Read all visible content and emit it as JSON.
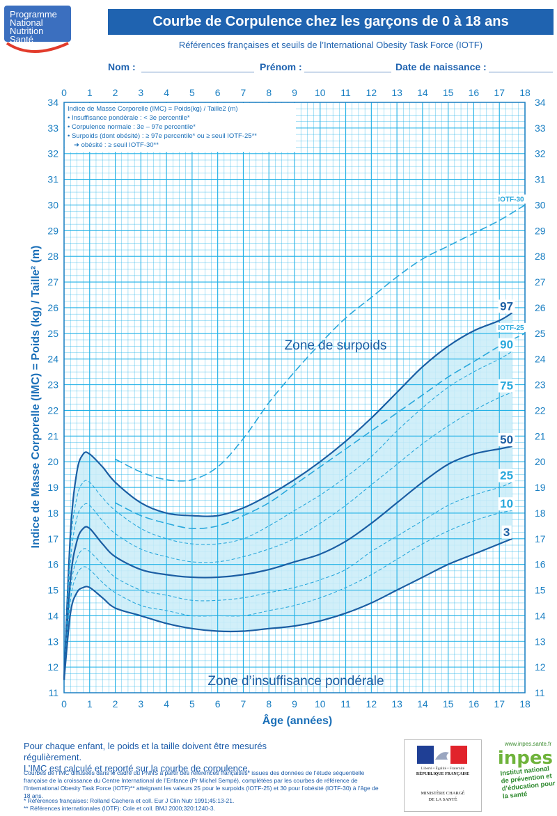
{
  "logo": {
    "lines": [
      "Programme",
      "National",
      "Nutrition",
      "Santé"
    ]
  },
  "header": {
    "title": "Courbe de Corpulence chez les garçons de 0 à 18 ans",
    "subtitle": "Références françaises et seuils de l’International Obesity Task Force (IOTF)",
    "fields": {
      "nom": "Nom",
      "prenom": "Prénom",
      "date": "Date de naissance"
    }
  },
  "legend": {
    "line1": "Indice de Masse Corporelle (IMC) = Poids(kg) / Taille2 (m)",
    "line2": "• Insuffisance pondérale : < 3e percentile*",
    "line3": "• Corpulence normale : 3e – 97e percentile*",
    "line4": "• Surpoids (dont obésité) : ≥ 97e percentile* ou ≥ seuil IOTF-25**",
    "line5": "➜ obésité : ≥ seuil IOTF-30**"
  },
  "zones": {
    "overweight": "Zone de surpoids",
    "underweight": "Zone d’insuffisance pondérale"
  },
  "colors": {
    "axis": "#1a7fc2",
    "grid": "#1fb0e6",
    "band": "#c9ecf8",
    "curve": "#1b5ea3",
    "dashed": "#2aa8dc"
  },
  "chart_data": {
    "type": "line",
    "xlabel": "Âge (années)",
    "ylabel": "Indice de Masse Corporelle (IMC) = Poids (kg) / Taille² (m)",
    "xlim": [
      0,
      18
    ],
    "ylim": [
      11,
      34
    ],
    "x_ticks": [
      0,
      1,
      2,
      3,
      4,
      5,
      6,
      7,
      8,
      9,
      10,
      11,
      12,
      13,
      14,
      15,
      16,
      17,
      18
    ],
    "y_ticks": [
      11,
      12,
      13,
      14,
      15,
      16,
      17,
      18,
      19,
      20,
      21,
      22,
      23,
      24,
      25,
      26,
      27,
      28,
      29,
      30,
      31,
      32,
      33,
      34
    ],
    "grid": true,
    "series": [
      {
        "name": "97",
        "style": "solid",
        "x": [
          0,
          0.25,
          0.5,
          0.75,
          1,
          1.5,
          2,
          3,
          4,
          5,
          6,
          7,
          8,
          9,
          10,
          11,
          12,
          13,
          14,
          15,
          16,
          17,
          17.5
        ],
        "y": [
          11.5,
          17.2,
          19.6,
          20.3,
          20.3,
          19.8,
          19.2,
          18.4,
          18.0,
          17.9,
          17.9,
          18.2,
          18.7,
          19.3,
          20.0,
          20.8,
          21.7,
          22.7,
          23.7,
          24.5,
          25.1,
          25.5,
          25.8
        ]
      },
      {
        "name": "90",
        "style": "dashed",
        "x": [
          0,
          0.25,
          0.5,
          0.75,
          1,
          1.5,
          2,
          3,
          4,
          5,
          6,
          7,
          8,
          9,
          10,
          11,
          12,
          13,
          14,
          15,
          16,
          17,
          17.5
        ],
        "y": [
          11.5,
          16.7,
          18.6,
          19.2,
          19.2,
          18.6,
          18.1,
          17.4,
          17.0,
          16.8,
          16.8,
          17.0,
          17.5,
          18.1,
          18.7,
          19.4,
          20.2,
          21.2,
          22.1,
          22.9,
          23.5,
          24.0,
          24.3
        ]
      },
      {
        "name": "75",
        "style": "dashed",
        "x": [
          0,
          0.25,
          0.5,
          0.75,
          1,
          1.5,
          2,
          3,
          4,
          5,
          6,
          7,
          8,
          9,
          10,
          11,
          12,
          13,
          14,
          15,
          16,
          17,
          17.5
        ],
        "y": [
          11.5,
          16.1,
          17.8,
          18.3,
          18.3,
          17.7,
          17.2,
          16.6,
          16.3,
          16.1,
          16.1,
          16.3,
          16.6,
          17.0,
          17.6,
          18.3,
          19.1,
          19.9,
          20.7,
          21.4,
          22.0,
          22.5,
          22.7
        ]
      },
      {
        "name": "50",
        "style": "solid",
        "x": [
          0,
          0.25,
          0.5,
          0.75,
          1,
          1.5,
          2,
          3,
          4,
          5,
          6,
          7,
          8,
          9,
          10,
          11,
          12,
          13,
          14,
          15,
          16,
          17,
          17.5
        ],
        "y": [
          11.5,
          15.4,
          16.9,
          17.4,
          17.4,
          16.8,
          16.3,
          15.8,
          15.6,
          15.5,
          15.5,
          15.6,
          15.8,
          16.1,
          16.4,
          16.9,
          17.6,
          18.4,
          19.2,
          19.9,
          20.3,
          20.5,
          20.6
        ]
      },
      {
        "name": "25",
        "style": "dashed",
        "x": [
          0,
          0.25,
          0.5,
          0.75,
          1,
          1.5,
          2,
          3,
          4,
          5,
          6,
          7,
          8,
          9,
          10,
          11,
          12,
          13,
          14,
          15,
          16,
          17,
          17.5
        ],
        "y": [
          11.5,
          15.0,
          16.2,
          16.6,
          16.5,
          16.0,
          15.5,
          15.0,
          14.8,
          14.6,
          14.6,
          14.7,
          14.9,
          15.1,
          15.4,
          15.8,
          16.5,
          17.1,
          17.7,
          18.3,
          18.7,
          19.0,
          19.2
        ]
      },
      {
        "name": "10",
        "style": "dashed",
        "x": [
          0,
          0.25,
          0.5,
          0.75,
          1,
          1.5,
          2,
          3,
          4,
          5,
          6,
          7,
          8,
          9,
          10,
          11,
          12,
          13,
          14,
          15,
          16,
          17,
          17.5
        ],
        "y": [
          11.5,
          14.6,
          15.6,
          15.9,
          15.8,
          15.3,
          14.9,
          14.4,
          14.2,
          14.0,
          14.0,
          14.0,
          14.2,
          14.4,
          14.7,
          15.1,
          15.6,
          16.2,
          16.8,
          17.3,
          17.7,
          18.0,
          18.1
        ]
      },
      {
        "name": "3",
        "style": "solid",
        "x": [
          0,
          0.25,
          0.5,
          0.75,
          1,
          1.5,
          2,
          3,
          4,
          5,
          6,
          7,
          8,
          9,
          10,
          11,
          12,
          13,
          14,
          15,
          16,
          17,
          17.5
        ],
        "y": [
          11.5,
          14.1,
          14.9,
          15.1,
          15.1,
          14.7,
          14.3,
          14.0,
          13.7,
          13.5,
          13.4,
          13.4,
          13.5,
          13.6,
          13.8,
          14.1,
          14.5,
          15.0,
          15.5,
          16.0,
          16.4,
          16.8,
          17.0
        ]
      },
      {
        "name": "IOTF-30",
        "style": "longdash",
        "x": [
          2,
          3,
          4,
          5,
          6,
          7,
          8,
          9,
          10,
          11,
          12,
          13,
          14,
          15,
          16,
          17,
          18
        ],
        "y": [
          20.1,
          19.6,
          19.3,
          19.3,
          19.8,
          20.9,
          22.3,
          23.5,
          24.6,
          25.6,
          26.4,
          27.2,
          27.9,
          28.4,
          28.9,
          29.4,
          30.0
        ]
      },
      {
        "name": "IOTF-25",
        "style": "longdash",
        "x": [
          2,
          3,
          4,
          5,
          6,
          7,
          8,
          9,
          10,
          11,
          12,
          13,
          14,
          15,
          16,
          17,
          18
        ],
        "y": [
          18.4,
          17.9,
          17.6,
          17.4,
          17.5,
          17.9,
          18.4,
          19.1,
          19.8,
          20.5,
          21.2,
          21.9,
          22.6,
          23.3,
          23.9,
          24.5,
          25.0
        ]
      }
    ],
    "curve_labels": [
      {
        "text": "97",
        "series": "97"
      },
      {
        "text": "IOTF-25",
        "series": "IOTF-25"
      },
      {
        "text": "90",
        "series": "90"
      },
      {
        "text": "75",
        "series": "75"
      },
      {
        "text": "50",
        "series": "50"
      },
      {
        "text": "25",
        "series": "25"
      },
      {
        "text": "10",
        "series": "10"
      },
      {
        "text": "3",
        "series": "3"
      },
      {
        "text": "IOTF-30",
        "series": "IOTF-30"
      }
    ]
  },
  "footer": {
    "note1": "Pour chaque enfant, le poids et la taille doivent être mesurés régulièrement.",
    "note2": "L’IMC est calculé et reporté sur la courbe de corpulence.",
    "small1": "Courbes de l’IMC diffusées dans le cadre du PNNS à partir des références françaises* issues des données de l’étude séquentielle française de la croissance du Centre International de l’Enfance (Pr Michel Sempé), complétées par les courbes de référence de l’International Obesity Task Force (IOTF)** atteignant les valeurs 25 pour le surpoids (IOTF-25) et 30 pour l’obésité (IOTF-30) à l’âge de 18 ans.",
    "ref1": "* Références françaises: Rolland Cachera et coll. Eur J Clin Nutr 1991;45:13-21.",
    "ref2": "** Références internationales (IOTF): Cole et coll. BMJ 2000;320:1240-3.",
    "rf_motto": "Liberté • Égalité • Fraternité",
    "rf_name": "RÉPUBLIQUE FRANÇAISE",
    "rf_ministry1": "MINISTÈRE CHARGÉ",
    "rf_ministry2": "DE LA SANTÉ",
    "inpes_url": "www.inpes.sante.fr",
    "inpes_name": "inpes",
    "inpes_tag1": "Institut national",
    "inpes_tag2": "de prévention et",
    "inpes_tag3": "d’éducation pour",
    "inpes_tag4": "la santé"
  }
}
